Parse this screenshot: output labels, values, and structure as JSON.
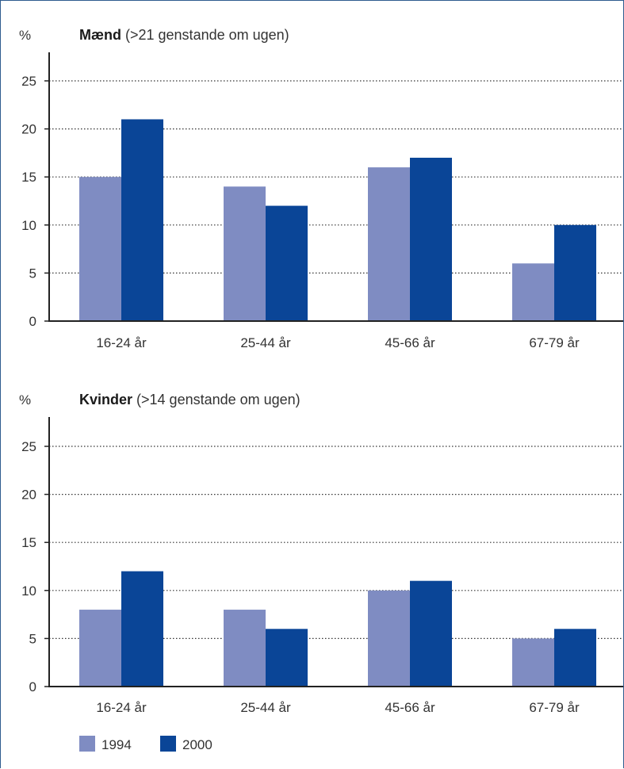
{
  "chart_data": [
    {
      "type": "bar",
      "title_bold": "Mænd",
      "title_rest": "(>21 genstande om ugen)",
      "unit": "%",
      "categories": [
        "16-24 år",
        "25-44 år",
        "45-66 år",
        "67-79 år"
      ],
      "series": [
        {
          "name": "1994",
          "color": "#7f8cc2",
          "values": [
            15,
            14,
            16,
            6
          ]
        },
        {
          "name": "2000",
          "color": "#0a4597",
          "values": [
            21,
            12,
            17,
            10
          ]
        }
      ],
      "ylim": [
        0,
        27
      ],
      "yticks": [
        0,
        5,
        10,
        15,
        20,
        25
      ],
      "grid": true
    },
    {
      "type": "bar",
      "title_bold": "Kvinder",
      "title_rest": "(>14 genstande om ugen)",
      "unit": "%",
      "categories": [
        "16-24 år",
        "25-44 år",
        "45-66 år",
        "67-79 år"
      ],
      "series": [
        {
          "name": "1994",
          "color": "#7f8cc2",
          "values": [
            8,
            8,
            10,
            5
          ]
        },
        {
          "name": "2000",
          "color": "#0a4597",
          "values": [
            12,
            6,
            11,
            6
          ]
        }
      ],
      "ylim": [
        0,
        27
      ],
      "yticks": [
        0,
        5,
        10,
        15,
        20,
        25
      ],
      "grid": true
    }
  ],
  "legend": {
    "placement": "bottom-left",
    "items": [
      {
        "label": "1994",
        "color": "#7f8cc2"
      },
      {
        "label": "2000",
        "color": "#0a4597"
      }
    ]
  }
}
